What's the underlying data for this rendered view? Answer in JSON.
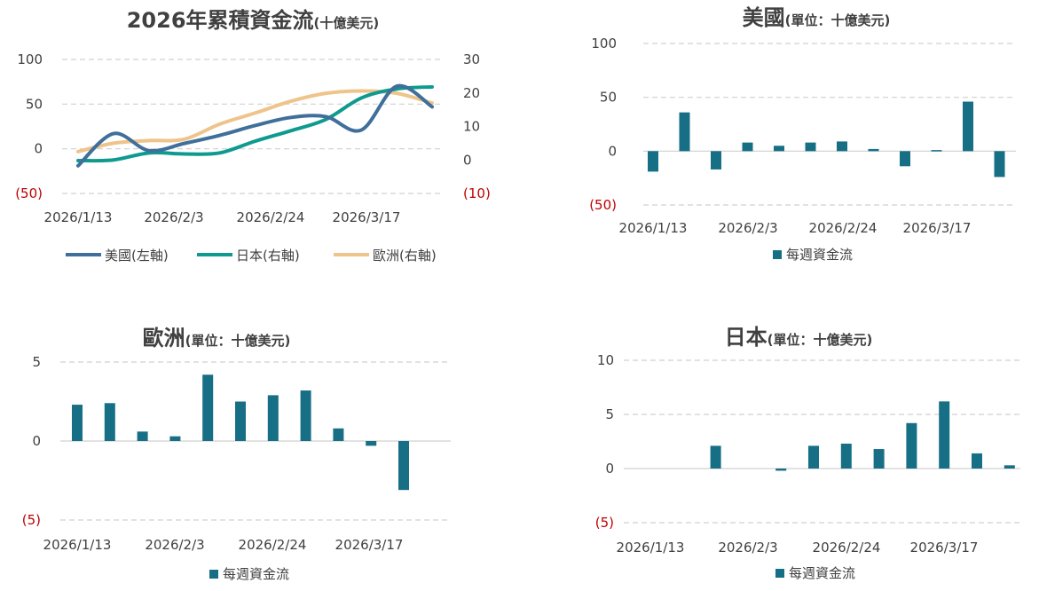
{
  "colors": {
    "us": "#3f6f9a",
    "japan": "#0e9a8f",
    "europe": "#eec48a",
    "bar": "#176f86",
    "negative_label": "#c00000",
    "grid": "#d0d0d0"
  },
  "chart_data": [
    {
      "id": "cumulative",
      "type": "line",
      "title": "2026年累積資金流",
      "title_unit": "(十億美元)",
      "x_labels": [
        "2026/1/13",
        "2026/2/3",
        "2026/2/24",
        "2026/3/17"
      ],
      "x_points": 11,
      "left_axis": {
        "ylim": [
          -50,
          100
        ],
        "ticks": [
          100,
          50,
          0,
          -50
        ],
        "tick_labels": [
          "100",
          "50",
          "0",
          "(50)"
        ]
      },
      "right_axis": {
        "ylim": [
          -10,
          30
        ],
        "ticks": [
          30,
          20,
          10,
          0,
          -10
        ],
        "tick_labels": [
          "30",
          "20",
          "10",
          "0",
          "(10)"
        ]
      },
      "series": [
        {
          "name": "美國(左軸)",
          "key": "us",
          "axis": "left",
          "values": [
            -19,
            17,
            -2,
            6,
            15,
            26,
            35,
            36,
            21,
            70,
            47
          ]
        },
        {
          "name": "日本(右軸)",
          "key": "japan",
          "axis": "right",
          "values": [
            -0.2,
            0,
            2.1,
            1.8,
            2.1,
            5.6,
            8.7,
            12.1,
            18.5,
            21.2,
            21.8
          ]
        },
        {
          "name": "歐洲(右軸)",
          "key": "europe",
          "axis": "right",
          "values": [
            2.5,
            5,
            5.8,
            6.2,
            10.7,
            14,
            17.5,
            19.9,
            20.6,
            19.9,
            17
          ]
        }
      ],
      "legend": "bottom"
    },
    {
      "id": "us-weekly",
      "type": "bar",
      "title": "美國",
      "title_unit": "(單位：十億美元)",
      "x_labels": [
        "2026/1/13",
        "2026/2/3",
        "2026/2/24",
        "2026/3/17"
      ],
      "ylim": [
        -50,
        100
      ],
      "ticks": [
        100,
        50,
        0,
        -50
      ],
      "tick_labels": [
        "100",
        "50",
        "0",
        "(50)"
      ],
      "series": [
        {
          "name": "每週資金流",
          "values": [
            -19,
            36,
            -17,
            8,
            5,
            8,
            9,
            2,
            -14,
            1,
            46,
            -24
          ]
        }
      ],
      "legend": "bottom"
    },
    {
      "id": "europe-weekly",
      "type": "bar",
      "title": "歐洲",
      "title_unit": "(單位：十億美元)",
      "x_labels": [
        "2026/1/13",
        "2026/2/3",
        "2026/2/24",
        "2026/3/17"
      ],
      "ylim": [
        -5,
        5
      ],
      "ticks": [
        5,
        0,
        -5
      ],
      "tick_labels": [
        "5",
        "0",
        "(5)"
      ],
      "series": [
        {
          "name": "每週資金流",
          "values": [
            2.3,
            2.4,
            0.6,
            0.3,
            4.2,
            2.5,
            2.9,
            3.2,
            0.8,
            -0.3,
            -3.1
          ]
        }
      ],
      "legend": "bottom"
    },
    {
      "id": "japan-weekly",
      "type": "bar",
      "title": "日本",
      "title_unit": "(單位：十億美元)",
      "x_labels": [
        "2026/1/13",
        "2026/2/3",
        "2026/2/24",
        "2026/3/17"
      ],
      "ylim": [
        -5,
        10
      ],
      "ticks": [
        10,
        5,
        0,
        -5
      ],
      "tick_labels": [
        "10",
        "5",
        "0",
        "(5)"
      ],
      "series": [
        {
          "name": "每週資金流",
          "values": [
            0,
            0,
            2.1,
            0,
            -0.2,
            2.1,
            2.3,
            1.8,
            4.2,
            6.2,
            1.4,
            0.3
          ]
        }
      ],
      "legend": "bottom"
    }
  ]
}
